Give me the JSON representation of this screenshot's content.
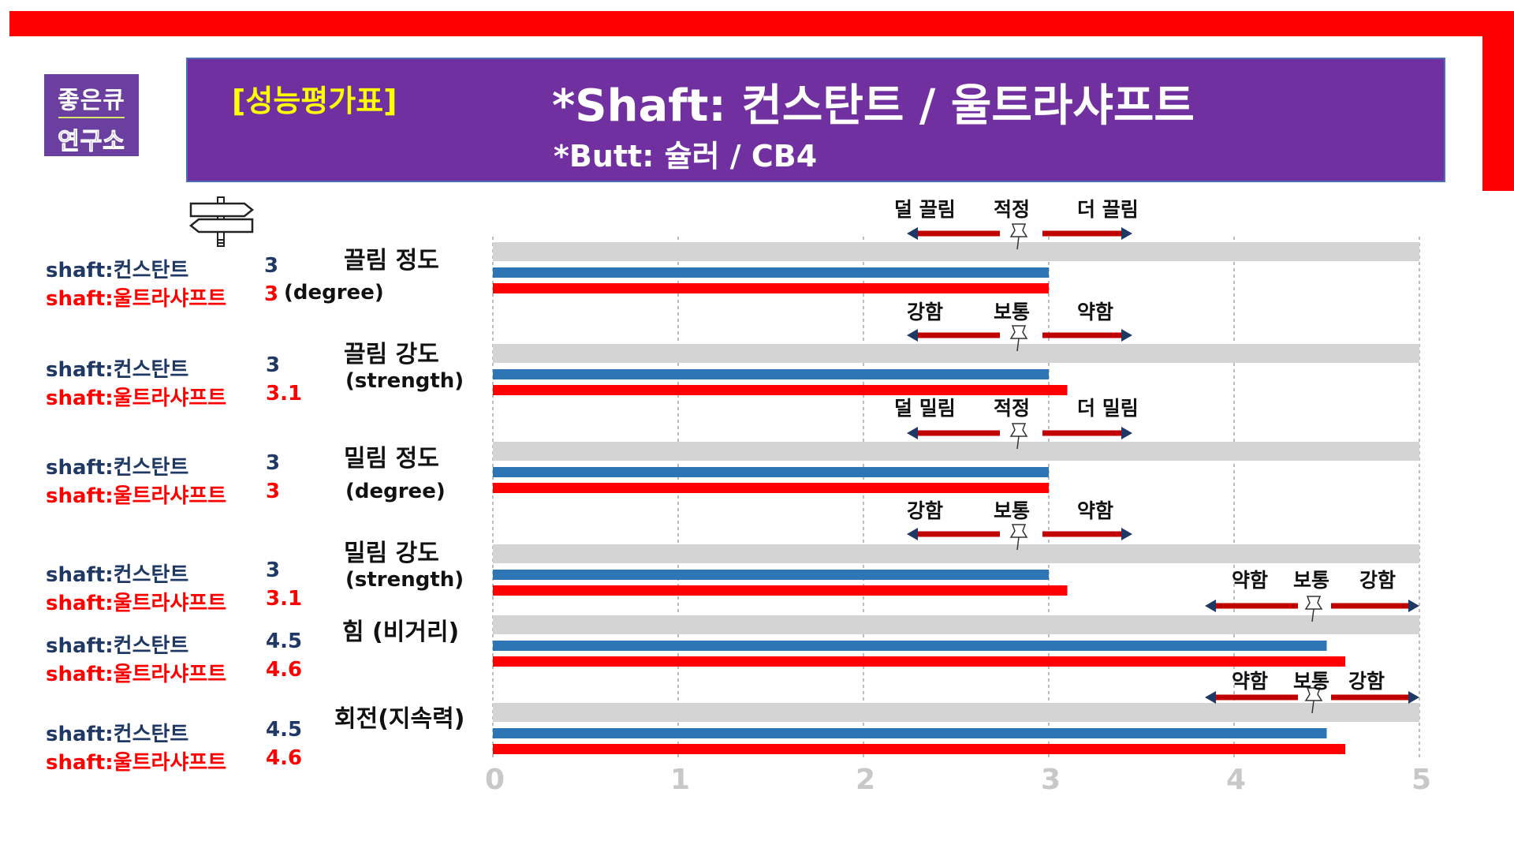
{
  "logo": {
    "line1": "좋은큐",
    "line2": "연구소"
  },
  "banner": {
    "tag": "[성능평가표]",
    "title": "*Shaft: 컨스탄트 / 울트라샤프트",
    "subtitle": "*Butt: 슐러 / CB4"
  },
  "colors": {
    "series1": "#2e75b6",
    "series2": "#ff0000",
    "track": "#d4d4d4",
    "banner": "#7030a0",
    "frame": "#ff0000"
  },
  "chart_data": {
    "type": "bar",
    "orientation": "horizontal",
    "xlim": [
      0,
      5
    ],
    "x_ticks": [
      "0",
      "1",
      "2",
      "3",
      "4",
      "5"
    ],
    "grid": "vertical dashed",
    "series": [
      {
        "name": "shaft:컨스탄트",
        "values": [
          3,
          3,
          3,
          3,
          4.5,
          4.5
        ]
      },
      {
        "name": "shaft:울트라샤프트",
        "values": [
          3,
          3.1,
          3,
          3.1,
          4.6,
          4.6
        ]
      }
    ],
    "categories": [
      {
        "label": "끌림 정도",
        "sub": "(degree)",
        "scale": [
          "덜 끌림",
          "적정",
          "더 끌림"
        ]
      },
      {
        "label": "끌림 강도",
        "sub": "(strength)",
        "scale": [
          "강함",
          "보통",
          "약함"
        ]
      },
      {
        "label": "밀림 정도",
        "sub": "(degree)",
        "scale": [
          "덜 밀림",
          "적정",
          "더 밀림"
        ]
      },
      {
        "label": "밀림 강도",
        "sub": "(strength)",
        "scale": [
          "강함",
          "보통",
          "약함"
        ]
      },
      {
        "label": "힘 (비거리)",
        "sub": "",
        "scale": [
          "약함",
          "보통",
          "강함"
        ]
      },
      {
        "label": "회전(지속력)",
        "sub": "",
        "scale": [
          "약함",
          "보통",
          "강함"
        ]
      }
    ],
    "value_labels": [
      [
        "3",
        "3"
      ],
      [
        "3",
        "3.1"
      ],
      [
        "3",
        "3"
      ],
      [
        "3",
        "3.1"
      ],
      [
        "4.5",
        "4.6"
      ],
      [
        "4.5",
        "4.6"
      ]
    ]
  }
}
